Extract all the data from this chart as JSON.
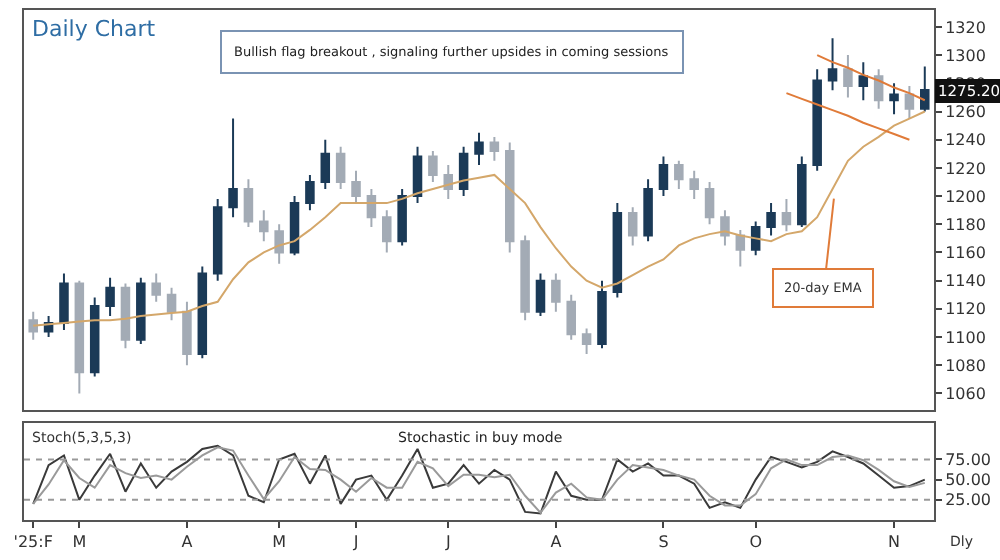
{
  "chart_data": [
    {
      "type": "candlestick",
      "title": "Daily Chart",
      "categories": [
        null,
        null,
        null,
        null,
        null,
        null,
        null,
        null,
        null,
        null,
        null,
        null,
        null,
        null,
        null,
        null,
        null,
        null,
        null,
        null,
        null,
        null,
        null,
        null,
        null,
        null,
        null,
        null,
        null,
        null,
        null,
        null,
        null,
        null,
        null,
        null,
        null,
        null,
        null,
        null,
        null,
        null,
        null,
        null,
        null,
        null,
        null,
        null,
        null,
        null,
        null,
        null,
        null,
        null,
        null,
        null,
        null,
        null,
        null
      ],
      "ohlc": [
        [
          1112,
          1118,
          1098,
          1104
        ],
        [
          1104,
          1115,
          1100,
          1110
        ],
        [
          1110,
          1145,
          1105,
          1138
        ],
        [
          1138,
          1140,
          1060,
          1075
        ],
        [
          1075,
          1128,
          1072,
          1122
        ],
        [
          1122,
          1142,
          1115,
          1135
        ],
        [
          1135,
          1138,
          1092,
          1098
        ],
        [
          1098,
          1142,
          1095,
          1138
        ],
        [
          1138,
          1145,
          1125,
          1130
        ],
        [
          1130,
          1135,
          1112,
          1118
        ],
        [
          1118,
          1125,
          1080,
          1088
        ],
        [
          1088,
          1150,
          1085,
          1145
        ],
        [
          1145,
          1198,
          1140,
          1192
        ],
        [
          1192,
          1255,
          1185,
          1205
        ],
        [
          1205,
          1212,
          1178,
          1182
        ],
        [
          1182,
          1190,
          1168,
          1175
        ],
        [
          1175,
          1180,
          1152,
          1160
        ],
        [
          1160,
          1200,
          1158,
          1195
        ],
        [
          1195,
          1215,
          1190,
          1210
        ],
        [
          1210,
          1240,
          1205,
          1230
        ],
        [
          1230,
          1235,
          1205,
          1210
        ],
        [
          1210,
          1218,
          1195,
          1200
        ],
        [
          1200,
          1205,
          1178,
          1185
        ],
        [
          1185,
          1190,
          1160,
          1168
        ],
        [
          1168,
          1205,
          1165,
          1200
        ],
        [
          1200,
          1235,
          1195,
          1228
        ],
        [
          1228,
          1232,
          1210,
          1215
        ],
        [
          1215,
          1222,
          1198,
          1205
        ],
        [
          1205,
          1235,
          1200,
          1230
        ],
        [
          1230,
          1245,
          1222,
          1238
        ],
        [
          1238,
          1242,
          1225,
          1232
        ],
        [
          1232,
          1238,
          1160,
          1168
        ],
        [
          1168,
          1172,
          1112,
          1118
        ],
        [
          1118,
          1145,
          1115,
          1140
        ],
        [
          1140,
          1145,
          1118,
          1125
        ],
        [
          1125,
          1130,
          1098,
          1102
        ],
        [
          1102,
          1106,
          1088,
          1095
        ],
        [
          1095,
          1140,
          1092,
          1132
        ],
        [
          1132,
          1195,
          1128,
          1188
        ],
        [
          1188,
          1192,
          1165,
          1172
        ],
        [
          1172,
          1212,
          1168,
          1205
        ],
        [
          1205,
          1228,
          1200,
          1222
        ],
        [
          1222,
          1225,
          1205,
          1212
        ],
        [
          1212,
          1218,
          1198,
          1205
        ],
        [
          1205,
          1210,
          1180,
          1185
        ],
        [
          1185,
          1190,
          1165,
          1172
        ],
        [
          1172,
          1176,
          1150,
          1162
        ],
        [
          1162,
          1182,
          1158,
          1178
        ],
        [
          1178,
          1195,
          1172,
          1188
        ],
        [
          1188,
          1198,
          1175,
          1180
        ],
        [
          1180,
          1228,
          1178,
          1222
        ],
        [
          1222,
          1290,
          1218,
          1282
        ],
        [
          1282,
          1312,
          1275,
          1290
        ],
        [
          1290,
          1300,
          1270,
          1278
        ],
        [
          1278,
          1295,
          1268,
          1285
        ],
        [
          1285,
          1290,
          1262,
          1268
        ],
        [
          1268,
          1280,
          1258,
          1272
        ],
        [
          1272,
          1278,
          1255,
          1262
        ],
        [
          1262,
          1292,
          1260,
          1275.2
        ]
      ],
      "colors": [
        "#a3abb5",
        "#1b3a57",
        "#1b3a57",
        "#a3abb5",
        "#1b3a57",
        "#1b3a57",
        "#a3abb5",
        "#1b3a57",
        "#a3abb5",
        "#a3abb5",
        "#a3abb5",
        "#1b3a57",
        "#1b3a57",
        "#1b3a57",
        "#a3abb5",
        "#a3abb5",
        "#a3abb5",
        "#1b3a57",
        "#1b3a57",
        "#1b3a57",
        "#a3abb5",
        "#a3abb5",
        "#a3abb5",
        "#a3abb5",
        "#1b3a57",
        "#1b3a57",
        "#a3abb5",
        "#a3abb5",
        "#1b3a57",
        "#1b3a57",
        "#a3abb5",
        "#a3abb5",
        "#a3abb5",
        "#1b3a57",
        "#a3abb5",
        "#a3abb5",
        "#a3abb5",
        "#1b3a57",
        "#1b3a57",
        "#a3abb5",
        "#1b3a57",
        "#1b3a57",
        "#a3abb5",
        "#a3abb5",
        "#a3abb5",
        "#a3abb5",
        "#a3abb5",
        "#1b3a57",
        "#1b3a57",
        "#a3abb5",
        "#1b3a57",
        "#1b3a57",
        "#1b3a57",
        "#a3abb5",
        "#1b3a57",
        "#a3abb5",
        "#1b3a57",
        "#a3abb5",
        "#1b3a57"
      ],
      "series": [
        {
          "type": "line",
          "color": "#d4a76a",
          "values": [
            1108,
            1109,
            1110,
            1111,
            1112,
            1112,
            1113,
            1115,
            1116,
            1117,
            1118,
            1122,
            1125,
            1141,
            1153,
            1160,
            1165,
            1168,
            1176,
            1185,
            1195,
            1195,
            1195,
            1195,
            1198,
            1202,
            1205,
            1208,
            1211,
            1213,
            1215,
            1205,
            1195,
            1178,
            1163,
            1150,
            1140,
            1135,
            1138,
            1144,
            1150,
            1155,
            1165,
            1170,
            1173,
            1175,
            1172,
            1170,
            1168,
            1173,
            1175,
            1185,
            1205,
            1225,
            1235,
            1242,
            1250,
            1255,
            1260
          ]
        },
        {
          "type": "line",
          "color": "#e07b39",
          "values": [
            null,
            null,
            null,
            null,
            null,
            null,
            null,
            null,
            null,
            null,
            null,
            null,
            null,
            null,
            null,
            null,
            null,
            null,
            null,
            null,
            null,
            null,
            null,
            null,
            null,
            null,
            null,
            null,
            null,
            null,
            null,
            null,
            null,
            null,
            null,
            null,
            null,
            null,
            null,
            null,
            null,
            null,
            null,
            null,
            null,
            null,
            null,
            null,
            null,
            null,
            null,
            1300,
            1295,
            1291,
            1286,
            1282,
            1277,
            1273,
            1268
          ]
        },
        {
          "type": "line",
          "color": "#e07b39",
          "values": [
            null,
            null,
            null,
            null,
            null,
            null,
            null,
            null,
            null,
            null,
            null,
            null,
            null,
            null,
            null,
            null,
            null,
            null,
            null,
            null,
            null,
            null,
            null,
            null,
            null,
            null,
            null,
            null,
            null,
            null,
            null,
            null,
            null,
            null,
            null,
            null,
            null,
            null,
            null,
            null,
            null,
            null,
            null,
            null,
            null,
            null,
            null,
            null,
            null,
            1273,
            1269,
            1265,
            1261,
            1257,
            1252,
            1248,
            1244,
            1240,
            null
          ]
        }
      ],
      "ylim": [
        1048,
        1332
      ],
      "yticks": [
        1060,
        1080,
        1100,
        1120,
        1140,
        1160,
        1180,
        1200,
        1220,
        1240,
        1260,
        1280,
        1300,
        1320
      ],
      "tick_labels": "y",
      "marker": "none",
      "annotations": [
        "Bullish flag breakout , signaling further upsides in coming sessions",
        "20-day EMA",
        {
          "text": "1275.20",
          "y": 1275.2
        }
      ]
    },
    {
      "type": "line",
      "title": "Stoch(5,3,5,3)",
      "categories": [
        "'25:F",
        null,
        null,
        "M",
        null,
        null,
        null,
        null,
        null,
        null,
        "A",
        null,
        null,
        null,
        null,
        null,
        "M",
        null,
        null,
        null,
        null,
        "J",
        null,
        null,
        null,
        null,
        null,
        "J",
        null,
        null,
        null,
        null,
        null,
        null,
        "A",
        null,
        null,
        null,
        null,
        null,
        null,
        "S",
        null,
        null,
        null,
        null,
        null,
        "O",
        null,
        null,
        null,
        null,
        null,
        null,
        null,
        null,
        "N",
        null,
        null
      ],
      "series": [
        {
          "color": "#3a3a3a",
          "values": [
            20,
            68,
            80,
            25,
            55,
            82,
            35,
            70,
            40,
            60,
            72,
            88,
            92,
            80,
            30,
            22,
            75,
            82,
            45,
            80,
            20,
            50,
            55,
            25,
            55,
            88,
            40,
            45,
            68,
            45,
            62,
            50,
            10,
            8,
            60,
            30,
            25,
            25,
            75,
            60,
            70,
            55,
            55,
            45,
            15,
            22,
            15,
            50,
            78,
            72,
            65,
            72,
            85,
            78,
            70,
            55,
            40,
            42,
            50
          ]
        },
        {
          "color": "#9a9a9a",
          "values": [
            20,
            44,
            74,
            52,
            40,
            68,
            58,
            52,
            55,
            50,
            66,
            80,
            90,
            86,
            55,
            26,
            48,
            78,
            63,
            62,
            50,
            35,
            52,
            40,
            40,
            72,
            64,
            42,
            56,
            56,
            53,
            56,
            30,
            9,
            34,
            45,
            28,
            25,
            50,
            68,
            65,
            62,
            55,
            50,
            30,
            18,
            18,
            32,
            64,
            75,
            68,
            68,
            78,
            80,
            74,
            62,
            48,
            41,
            46
          ]
        }
      ],
      "ylim": [
        0,
        120
      ],
      "yticks": [
        {
          "value": 25,
          "label": "25.00"
        },
        {
          "value": 50,
          "label": "50.00"
        },
        {
          "value": 75,
          "label": "75.00"
        }
      ],
      "ref_lines": [
        {
          "axis": "y",
          "value": 75,
          "line_style": "dotted",
          "color": "#999999"
        },
        {
          "axis": "y",
          "value": 25,
          "line_style": "dotted",
          "color": "#999999"
        }
      ],
      "marker": "none",
      "line_style": "solid",
      "annotations": [
        "Stochastic in buy mode",
        "Dly"
      ]
    }
  ]
}
